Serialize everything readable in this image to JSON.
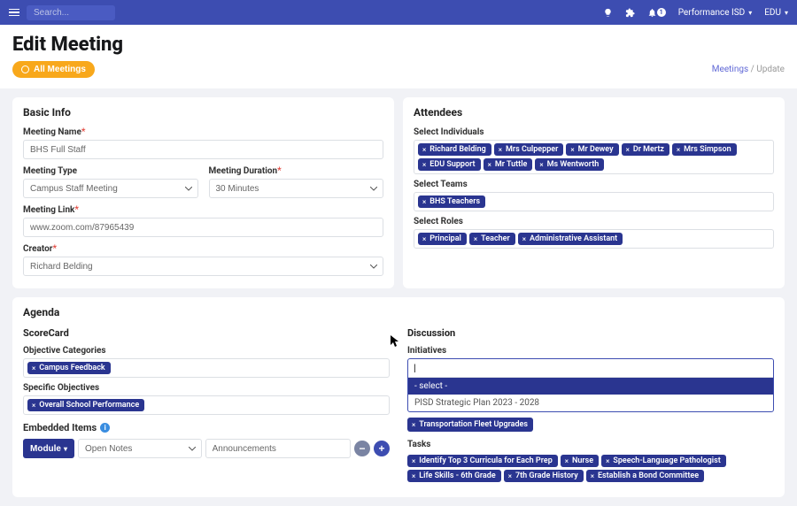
{
  "nav": {
    "search_placeholder": "Search...",
    "notif_count": "1",
    "org": "Performance ISD",
    "menu": "EDU"
  },
  "header": {
    "title": "Edit Meeting",
    "all_meetings": "All Meetings",
    "crumb_link": "Meetings",
    "crumb_sep": "/",
    "crumb_current": "Update"
  },
  "basic": {
    "card_title": "Basic Info",
    "name_label": "Meeting Name",
    "name_value": "BHS Full Staff",
    "type_label": "Meeting Type",
    "type_value": "Campus Staff Meeting",
    "duration_label": "Meeting Duration",
    "duration_value": "30 Minutes",
    "link_label": "Meeting Link",
    "link_value": "www.zoom.com/87965439",
    "creator_label": "Creator",
    "creator_value": "Richard Belding"
  },
  "attendees": {
    "card_title": "Attendees",
    "individuals_label": "Select Individuals",
    "individuals": [
      "Richard Belding",
      "Mrs Culpepper",
      "Mr Dewey",
      "Dr Mertz",
      "Mrs Simpson",
      "EDU Support",
      "Mr Tuttle",
      "Ms Wentworth"
    ],
    "teams_label": "Select Teams",
    "teams": [
      "BHS Teachers"
    ],
    "roles_label": "Select Roles",
    "roles": [
      "Principal",
      "Teacher",
      "Administrative Assistant"
    ]
  },
  "agenda": {
    "card_title": "Agenda",
    "scorecard_title": "ScoreCard",
    "obj_cat_label": "Objective Categories",
    "obj_cats": [
      "Campus Feedback"
    ],
    "spec_obj_label": "Specific Objectives",
    "spec_objs": [
      "Overall School Performance"
    ],
    "embedded_title": "Embedded Items",
    "module_label": "Module",
    "emb_select": "Open Notes",
    "emb_input": "Announcements",
    "discussion_title": "Discussion",
    "initiatives_label": "Initiatives",
    "dd_select": "- select -",
    "dd_opt1": "PISD Strategic Plan 2023 - 2028",
    "init_tags": [
      "Transportation Fleet Upgrades"
    ],
    "tasks_label": "Tasks",
    "tasks": [
      "Identify Top 3 Curricula for Each Prep",
      "Nurse",
      "Speech-Language Pathologist",
      "Life Skills - 6th Grade",
      "7th Grade History",
      "Establish a Bond Committee"
    ]
  }
}
